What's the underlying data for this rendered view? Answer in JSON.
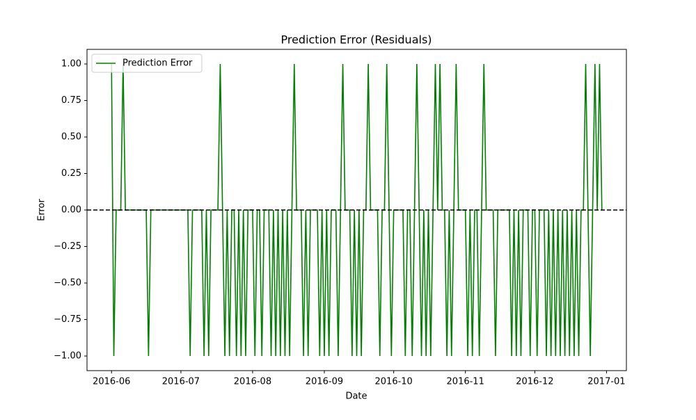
{
  "chart_data": {
    "type": "line",
    "title": "Prediction Error (Residuals)",
    "xlabel": "Date",
    "ylabel": "Error",
    "x": [
      0,
      1,
      2,
      4,
      5,
      6,
      15,
      16,
      17,
      33,
      34,
      35,
      39,
      40,
      41,
      42,
      43,
      46,
      47,
      48,
      49,
      50,
      51,
      52,
      53,
      54,
      55,
      56,
      57,
      58,
      59,
      61,
      62,
      63,
      64,
      65,
      66,
      68,
      69,
      70,
      71,
      72,
      73,
      74,
      75,
      76,
      77,
      78,
      79,
      80,
      82,
      83,
      84,
      85,
      86,
      89,
      90,
      91,
      92,
      93,
      94,
      95,
      97,
      98,
      99,
      100,
      101,
      103,
      104,
      105,
      106,
      107,
      108,
      109,
      110,
      111,
      112,
      115,
      116,
      117,
      118,
      119,
      120,
      121,
      122,
      126,
      127,
      128,
      129,
      130,
      131,
      132,
      133,
      134,
      135,
      136,
      137,
      138,
      139,
      140,
      141,
      142,
      143,
      144,
      145,
      146,
      147,
      148,
      149,
      150,
      153,
      154,
      155,
      156,
      157,
      158,
      159,
      160,
      161,
      162,
      165,
      166,
      167,
      172,
      173,
      174,
      175,
      176,
      177,
      178,
      180,
      181,
      182,
      183,
      184,
      185,
      187,
      188,
      189,
      190,
      191,
      192,
      193,
      194,
      195,
      196,
      197,
      198,
      199,
      200,
      201,
      202,
      203,
      204,
      205,
      206,
      207,
      208,
      209,
      210,
      211,
      212
    ],
    "series": [
      {
        "name": "Prediction Error",
        "color": "green",
        "values": [
          1,
          -1,
          0,
          0,
          1,
          0,
          0,
          -1,
          0,
          0,
          -1,
          0,
          0,
          -1,
          0,
          -1,
          0,
          0,
          1,
          0,
          -1,
          0,
          -1,
          0,
          0,
          -1,
          0,
          -1,
          0,
          -1,
          0,
          0,
          -1,
          0,
          0,
          -1,
          0,
          0,
          -1,
          0,
          -1,
          0,
          -1,
          0,
          -1,
          0,
          -1,
          0,
          1,
          0,
          0,
          -1,
          0,
          -1,
          0,
          0,
          -1,
          0,
          -1,
          0,
          -1,
          0,
          0,
          -1,
          0,
          1,
          0,
          0,
          -1,
          0,
          -1,
          0,
          -1,
          0,
          0,
          1,
          0,
          0,
          -1,
          0,
          0,
          1,
          0,
          -1,
          0,
          0,
          -1,
          0,
          0,
          -1,
          0,
          1,
          0,
          -1,
          0,
          -1,
          0,
          -1,
          0,
          1,
          0,
          1,
          0,
          0,
          -1,
          0,
          -1,
          0,
          1,
          0,
          0,
          -1,
          0,
          -1,
          0,
          0,
          -1,
          0,
          1,
          0,
          0,
          -1,
          0,
          0,
          -1,
          0,
          -1,
          0,
          -1,
          0,
          0,
          -1,
          0,
          0,
          -1,
          0,
          0,
          -1,
          0,
          -1,
          0,
          -1,
          0,
          -1,
          0,
          -1,
          0,
          -1,
          0,
          -1,
          0,
          -1,
          0,
          0,
          1,
          0,
          -1,
          0,
          1,
          0,
          1,
          0
        ]
      }
    ],
    "hline": {
      "y": 0,
      "color": "black",
      "dashed": true
    },
    "xlim": [
      -10.6,
      222.6
    ],
    "xticks": [
      {
        "value": 0,
        "label": "2016-06"
      },
      {
        "value": 30,
        "label": "2016-07"
      },
      {
        "value": 61,
        "label": "2016-08"
      },
      {
        "value": 92,
        "label": "2016-09"
      },
      {
        "value": 122,
        "label": "2016-10"
      },
      {
        "value": 153,
        "label": "2016-11"
      },
      {
        "value": 183,
        "label": "2016-12"
      },
      {
        "value": 214,
        "label": "2017-01"
      }
    ],
    "ylim": [
      -1.1,
      1.1
    ],
    "yticks": [
      {
        "value": -1,
        "label": "−1.00"
      },
      {
        "value": -0.75,
        "label": "−0.75"
      },
      {
        "value": -0.5,
        "label": "−0.50"
      },
      {
        "value": -0.25,
        "label": "−0.25"
      },
      {
        "value": 0,
        "label": "0.00"
      },
      {
        "value": 0.25,
        "label": "0.25"
      },
      {
        "value": 0.5,
        "label": "0.50"
      },
      {
        "value": 0.75,
        "label": "0.75"
      },
      {
        "value": 1,
        "label": "1.00"
      }
    ],
    "legend": "upper left",
    "grid": false
  }
}
